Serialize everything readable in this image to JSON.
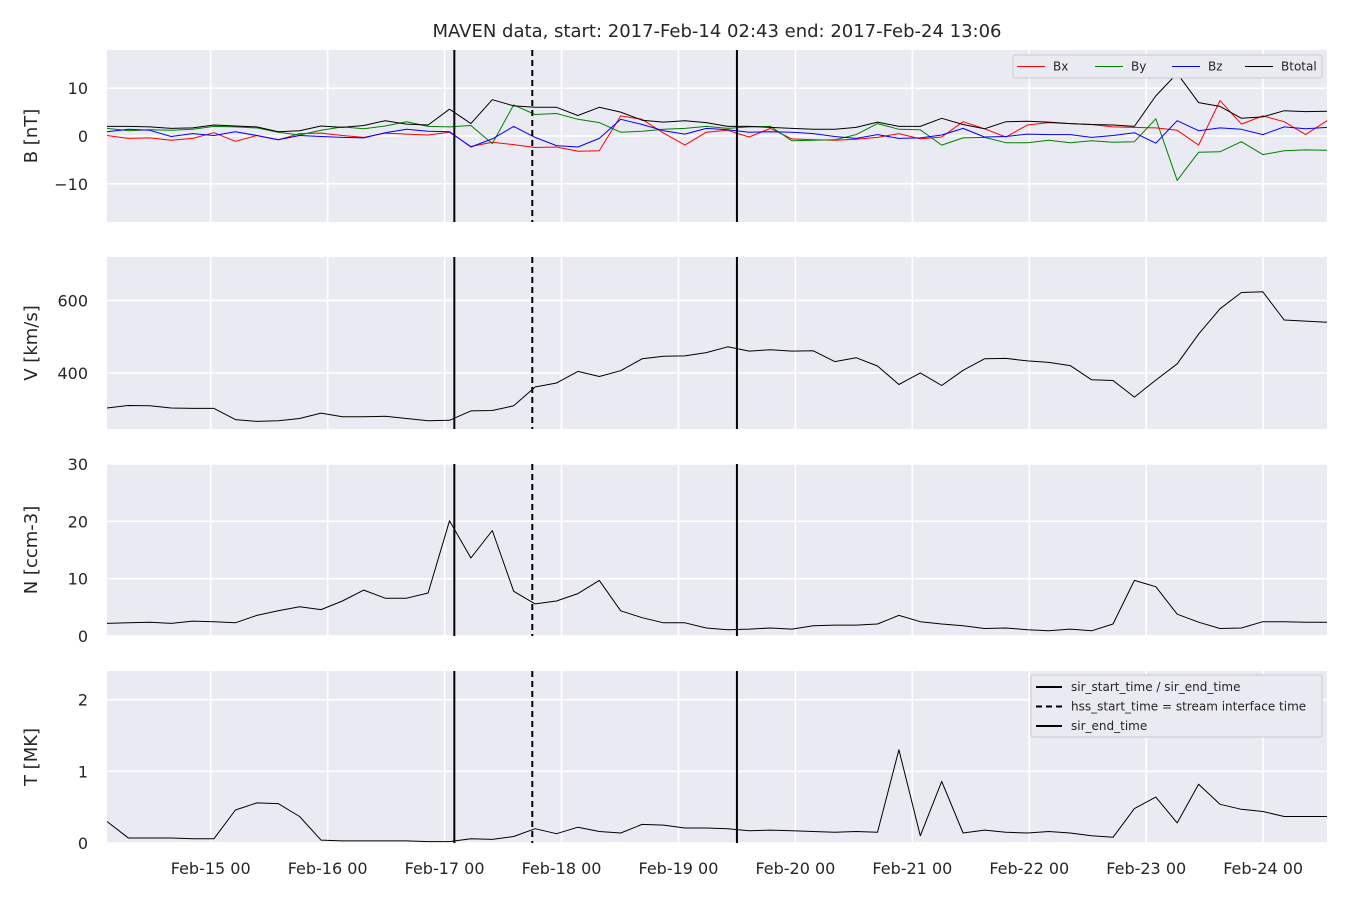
{
  "title": "MAVEN data, start: 2017-Feb-14 02:43  end: 2017-Feb-24 13:06",
  "chart_data": {
    "type": "line",
    "x_range": [
      "2017-02-14T02:43",
      "2017-02-24T13:06"
    ],
    "x_ticks": [
      {
        "t": "2017-02-15T00:00",
        "label": "Feb-15 00"
      },
      {
        "t": "2017-02-16T00:00",
        "label": "Feb-16 00"
      },
      {
        "t": "2017-02-17T00:00",
        "label": "Feb-17 00"
      },
      {
        "t": "2017-02-18T00:00",
        "label": "Feb-18 00"
      },
      {
        "t": "2017-02-19T00:00",
        "label": "Feb-19 00"
      },
      {
        "t": "2017-02-20T00:00",
        "label": "Feb-20 00"
      },
      {
        "t": "2017-02-21T00:00",
        "label": "Feb-21 00"
      },
      {
        "t": "2017-02-22T00:00",
        "label": "Feb-22 00"
      },
      {
        "t": "2017-02-23T00:00",
        "label": "Feb-23 00"
      },
      {
        "t": "2017-02-24T00:00",
        "label": "Feb-24 00"
      }
    ],
    "vlines": [
      {
        "t": "2017-02-17T02:00",
        "style": "solid"
      },
      {
        "t": "2017-02-17T18:00",
        "style": "dashed"
      },
      {
        "t": "2017-02-19T12:00",
        "style": "solid"
      }
    ],
    "panels": [
      {
        "ylabel": "B [nT]",
        "ylim": [
          -18,
          18
        ],
        "yticks": [
          {
            "v": 10,
            "label": "10"
          },
          {
            "v": 0,
            "label": "0"
          },
          {
            "v": -10,
            "label": "−10"
          }
        ],
        "grid": true,
        "legend": {
          "placement": "top-right",
          "layout": "horizontal"
        },
        "series": [
          {
            "name": "Bx",
            "color": "#ff0000",
            "values": [
              0.1,
              -0.5,
              -0.4,
              -0.9,
              -0.5,
              0.7,
              -1.1,
              0.1,
              -0.8,
              0.5,
              0.6,
              0.1,
              -0.3,
              0.6,
              0.4,
              0.2,
              0.8,
              -2.2,
              -1.3,
              -1.8,
              -2.4,
              -2.3,
              -3.2,
              -3.1,
              4.2,
              3.5,
              0.6,
              -1.9,
              0.8,
              1.2,
              -0.2,
              1.6,
              -0.6,
              -0.8,
              -0.9,
              -0.7,
              -0.3,
              0.5,
              -0.6,
              -0.2,
              3.0,
              1.5,
              -0.2,
              2.3,
              2.8,
              2.6,
              2.4,
              1.9,
              1.8,
              1.7,
              1.2,
              -1.9,
              7.4,
              2.5,
              4.2,
              3.0,
              0.3,
              3.2
            ]
          },
          {
            "name": "By",
            "color": "#008000",
            "values": [
              1.6,
              1.1,
              1.3,
              1.2,
              1.4,
              2.0,
              1.9,
              1.7,
              0.8,
              0.2,
              1.2,
              1.9,
              1.5,
              2.1,
              3.0,
              2.0,
              1.9,
              2.2,
              -1.6,
              6.5,
              4.5,
              4.7,
              3.5,
              2.8,
              0.8,
              1.0,
              1.4,
              1.6,
              2.0,
              1.6,
              1.9,
              2.0,
              -1.0,
              -0.9,
              -0.8,
              0.3,
              2.6,
              1.4,
              1.3,
              -1.9,
              -0.4,
              -0.3,
              -1.4,
              -1.4,
              -0.9,
              -1.4,
              -1.0,
              -1.3,
              -1.2,
              3.6,
              -9.3,
              -3.4,
              -3.3,
              -1.2,
              -3.9,
              -3.1,
              -2.9,
              -3.0
            ]
          },
          {
            "name": "Bz",
            "color": "#0000ff",
            "values": [
              0.9,
              1.4,
              1.2,
              -0.1,
              0.5,
              0.1,
              0.9,
              0.1,
              -0.8,
              0.1,
              -0.1,
              -0.3,
              -0.4,
              0.7,
              1.4,
              1.0,
              0.9,
              -2.3,
              -0.6,
              2.0,
              -0.3,
              -2.0,
              -2.3,
              -0.5,
              3.5,
              2.4,
              1.1,
              0.4,
              1.6,
              1.3,
              0.8,
              0.9,
              0.8,
              0.5,
              -0.1,
              -0.5,
              0.3,
              -0.5,
              -0.4,
              0.2,
              1.6,
              -0.2,
              -0.1,
              0.4,
              0.3,
              0.3,
              -0.3,
              0.1,
              0.7,
              -1.5,
              3.2,
              1.1,
              1.7,
              1.4,
              0.3,
              1.9,
              1.5,
              1.8
            ]
          },
          {
            "name": "Btotal",
            "color": "#000000",
            "values": [
              2.0,
              2.0,
              1.9,
              1.6,
              1.7,
              2.3,
              2.1,
              1.9,
              0.9,
              1.1,
              2.1,
              1.8,
              2.2,
              3.2,
              2.5,
              2.3,
              5.6,
              2.6,
              7.6,
              6.3,
              6.0,
              6.0,
              4.3,
              6.0,
              5.0,
              3.3,
              2.9,
              3.2,
              2.8,
              2.0,
              2.0,
              1.8,
              1.6,
              1.4,
              1.4,
              1.8,
              2.9,
              2.0,
              2.0,
              3.7,
              2.4,
              1.5,
              3.0,
              3.1,
              2.9,
              2.6,
              2.4,
              2.3,
              2.0,
              8.4,
              13.1,
              7.0,
              6.2,
              3.7,
              4.0,
              5.3,
              5.1,
              5.2
            ]
          }
        ]
      },
      {
        "ylabel": "V [km/s]",
        "ylim": [
          245,
          720
        ],
        "yticks": [
          {
            "v": 600,
            "label": "600"
          },
          {
            "v": 400,
            "label": "400"
          }
        ],
        "grid": true,
        "series": [
          {
            "name": "",
            "color": "#000000",
            "values": [
              303,
              310,
              309,
              303,
              302,
              302,
              271,
              266,
              268,
              274,
              289,
              279,
              279,
              280,
              274,
              268,
              269,
              295,
              296,
              309,
              361,
              372,
              404,
              390,
              406,
              439,
              446,
              447,
              456,
              472,
              460,
              464,
              460,
              461,
              431,
              442,
              419,
              368,
              400,
              365,
              407,
              439,
              440,
              433,
              429,
              420,
              381,
              379,
              333,
              380,
              425,
              507,
              577,
              622,
              624,
              546,
              543,
              540
            ]
          }
        ]
      },
      {
        "ylabel": "N [ccm-3]",
        "ylim": [
          0,
          30
        ],
        "yticks": [
          {
            "v": 30,
            "label": "30"
          },
          {
            "v": 20,
            "label": "20"
          },
          {
            "v": 10,
            "label": "10"
          },
          {
            "v": 0,
            "label": "0"
          }
        ],
        "grid": true,
        "series": [
          {
            "name": "",
            "color": "#000000",
            "values": [
              2.2,
              2.3,
              2.4,
              2.2,
              2.6,
              2.5,
              2.3,
              3.6,
              4.4,
              5.1,
              4.6,
              6.1,
              8.0,
              6.6,
              6.6,
              7.5,
              20.1,
              13.6,
              18.4,
              7.8,
              5.6,
              6.1,
              7.4,
              9.7,
              4.4,
              3.2,
              2.3,
              2.3,
              1.4,
              1.1,
              1.2,
              1.4,
              1.2,
              1.8,
              1.9,
              1.9,
              2.1,
              3.6,
              2.5,
              2.1,
              1.8,
              1.3,
              1.4,
              1.1,
              0.9,
              1.2,
              0.9,
              2.1,
              9.7,
              8.6,
              3.8,
              2.4,
              1.3,
              1.4,
              2.5,
              2.5,
              2.4,
              2.4
            ]
          }
        ]
      },
      {
        "ylabel": "T [MK]",
        "ylim": [
          0,
          2.4
        ],
        "yticks": [
          {
            "v": 2,
            "label": "2"
          },
          {
            "v": 1,
            "label": "1"
          },
          {
            "v": 0,
            "label": "0"
          }
        ],
        "grid": true,
        "legend": {
          "placement": "top-right",
          "layout": "vertical"
        },
        "series": [
          {
            "name": "",
            "color": "#000000",
            "values": [
              0.3,
              0.07,
              0.07,
              0.07,
              0.06,
              0.06,
              0.46,
              0.56,
              0.55,
              0.37,
              0.04,
              0.03,
              0.03,
              0.03,
              0.03,
              0.02,
              0.02,
              0.06,
              0.05,
              0.09,
              0.2,
              0.13,
              0.22,
              0.16,
              0.14,
              0.26,
              0.25,
              0.21,
              0.21,
              0.2,
              0.17,
              0.18,
              0.17,
              0.16,
              0.15,
              0.16,
              0.15,
              1.3,
              0.1,
              0.86,
              0.14,
              0.18,
              0.15,
              0.14,
              0.16,
              0.14,
              0.1,
              0.08,
              0.48,
              0.64,
              0.28,
              0.82,
              0.54,
              0.47,
              0.44,
              0.37,
              0.37,
              0.37
            ]
          }
        ]
      }
    ],
    "line_legend": [
      {
        "label": "sir_start_time / sir_end_time",
        "style": "solid"
      },
      {
        "label": "hss_start_time = stream interface time",
        "style": "dashed"
      },
      {
        "label": "sir_end_time",
        "style": "solid"
      }
    ]
  }
}
